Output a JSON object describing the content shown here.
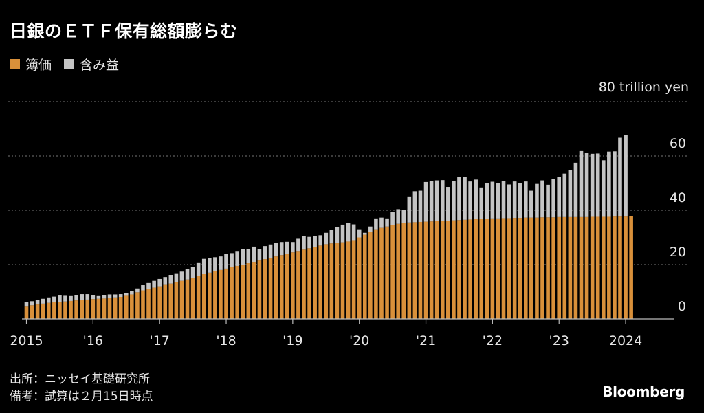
{
  "title": "日銀のＥＴＦ保有総額膨らむ",
  "legend": [
    {
      "label": "簿価",
      "color": "#d9903a"
    },
    {
      "label": "含み益",
      "color": "#c4c4c4"
    }
  ],
  "unit_label": "80 trillion yen",
  "notes": {
    "source": "出所：ニッセイ基礎研究所",
    "remark": "備考：試算は２月15日時点"
  },
  "logo": "Bloomberg",
  "chart_data": {
    "type": "bar",
    "stacked": true,
    "ylim": [
      0,
      80
    ],
    "yticks": [
      0,
      20,
      40,
      60
    ],
    "grid": true,
    "x_start": "2015-01",
    "x_tick_labels": [
      "2015",
      "'16",
      "'17",
      "'18",
      "'19",
      "'20",
      "'21",
      "'22",
      "'23",
      "2024"
    ],
    "series": [
      {
        "name": "簿価",
        "color": "#d9903a",
        "values": [
          4.5,
          5.0,
          5.3,
          5.6,
          5.9,
          6.1,
          6.3,
          6.4,
          6.6,
          6.8,
          7.0,
          7.1,
          7.3,
          7.4,
          7.5,
          7.7,
          7.9,
          8.1,
          8.5,
          9.0,
          9.8,
          10.5,
          11.0,
          11.5,
          12.0,
          12.5,
          13.0,
          13.5,
          14.0,
          14.5,
          15.0,
          15.8,
          16.5,
          17.0,
          17.5,
          18.0,
          18.5,
          19.0,
          19.5,
          20.0,
          20.5,
          21.0,
          21.5,
          22.0,
          22.5,
          23.0,
          23.5,
          24.0,
          24.5,
          25.0,
          25.5,
          26.0,
          26.5,
          27.0,
          27.5,
          27.8,
          28.0,
          28.2,
          28.5,
          29.0,
          30.0,
          31.0,
          32.0,
          33.0,
          33.5,
          34.0,
          34.5,
          35.0,
          35.2,
          35.5,
          35.6,
          35.7,
          35.8,
          35.9,
          36.0,
          36.1,
          36.2,
          36.3,
          36.4,
          36.5,
          36.6,
          36.7,
          36.8,
          36.9,
          37.0,
          37.0,
          37.1,
          37.1,
          37.2,
          37.2,
          37.3,
          37.3,
          37.3,
          37.4,
          37.4,
          37.4,
          37.5,
          37.5,
          37.5,
          37.5,
          37.5,
          37.5,
          37.6,
          37.6,
          37.6,
          37.6,
          37.7,
          37.7,
          37.7,
          37.8
        ]
      },
      {
        "name": "含み益",
        "color": "#c4c4c4",
        "values": [
          1.6,
          1.5,
          1.6,
          1.8,
          2.0,
          2.1,
          2.3,
          2.1,
          1.8,
          2.0,
          2.1,
          2.0,
          1.4,
          1.0,
          1.2,
          1.3,
          1.1,
          1.0,
          1.0,
          1.2,
          1.4,
          1.9,
          2.2,
          2.5,
          2.7,
          2.9,
          3.2,
          3.3,
          3.4,
          3.8,
          4.2,
          5.0,
          5.6,
          5.5,
          5.2,
          5.0,
          5.3,
          5.2,
          5.5,
          5.6,
          5.3,
          5.6,
          4.2,
          4.8,
          4.9,
          5.1,
          4.8,
          4.4,
          3.8,
          4.5,
          5.0,
          4.2,
          4.0,
          3.8,
          4.2,
          5.0,
          5.8,
          6.5,
          6.9,
          5.8,
          3.0,
          0.7,
          2.0,
          4.0,
          3.8,
          3.0,
          4.8,
          5.4,
          4.8,
          9.6,
          11.4,
          11.5,
          14.6,
          14.8,
          15.0,
          15.0,
          12.4,
          14.5,
          16.0,
          15.8,
          14.0,
          14.6,
          11.6,
          13.0,
          13.5,
          13.0,
          13.6,
          12.4,
          13.4,
          12.7,
          13.3,
          9.9,
          12.4,
          13.6,
          12.0,
          14.0,
          14.8,
          16.0,
          17.4,
          20.0,
          24.3,
          23.7,
          23.2,
          23.3,
          20.8,
          24.0,
          24.0,
          29.0,
          30.0
        ]
      }
    ]
  }
}
